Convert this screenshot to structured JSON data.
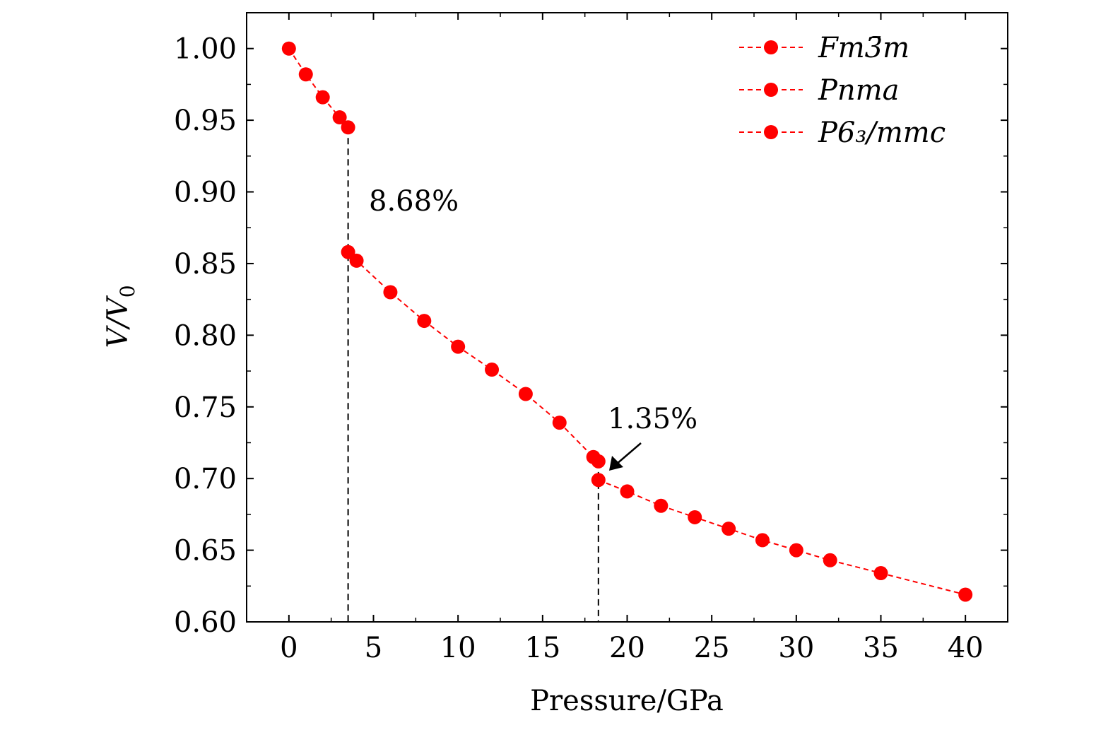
{
  "chart_data": {
    "type": "scatter",
    "xlabel": "Pressure/GPa",
    "ylabel": "V/V0",
    "ylabel_parts": {
      "main": "V/V",
      "sub": "0"
    },
    "xlim": [
      -2.5,
      42.5
    ],
    "ylim": [
      0.6,
      1.025
    ],
    "xticks": [
      0,
      5,
      10,
      15,
      20,
      25,
      30,
      35,
      40
    ],
    "xtick_labels": [
      "0",
      "5",
      "10",
      "15",
      "20",
      "25",
      "30",
      "35",
      "40"
    ],
    "yticks": [
      0.6,
      0.65,
      0.7,
      0.75,
      0.8,
      0.85,
      0.9,
      0.95,
      1.0
    ],
    "ytick_labels": [
      "0.60",
      "0.65",
      "0.70",
      "0.75",
      "0.80",
      "0.85",
      "0.90",
      "0.95",
      "1.00"
    ],
    "grid": false,
    "legend_position": "top-right",
    "marker_color": "#ff0000",
    "line_color": "#ff0000",
    "series": [
      {
        "name": "Fm3̄m",
        "x": [
          0,
          1,
          2,
          3,
          3.5
        ],
        "y": [
          1.0,
          0.982,
          0.966,
          0.952,
          0.945
        ]
      },
      {
        "name": "Pnma",
        "x": [
          3.5,
          4,
          6,
          8,
          10,
          12,
          14,
          16,
          18,
          18.3
        ],
        "y": [
          0.858,
          0.852,
          0.83,
          0.81,
          0.792,
          0.776,
          0.759,
          0.739,
          0.715,
          0.712
        ]
      },
      {
        "name": "P6₃/mmc",
        "x": [
          18.3,
          20,
          22,
          24,
          26,
          28,
          30,
          32,
          35,
          40
        ],
        "y": [
          0.699,
          0.691,
          0.681,
          0.673,
          0.665,
          0.657,
          0.65,
          0.643,
          0.634,
          0.619
        ]
      }
    ],
    "transitions": [
      {
        "pressure": 3.5,
        "label": "8.68%"
      },
      {
        "pressure": 18.3,
        "label": "1.35%"
      }
    ]
  }
}
